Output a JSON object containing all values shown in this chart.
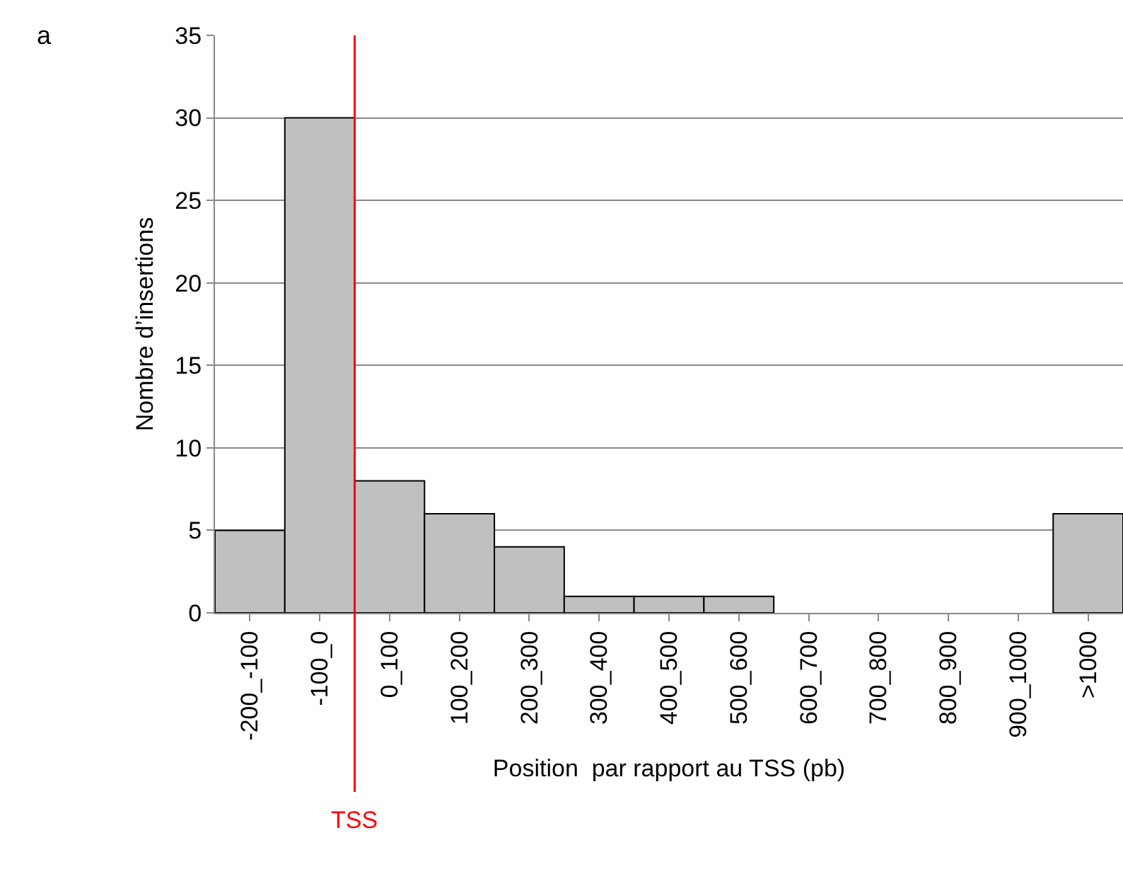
{
  "chart_data": {
    "type": "bar",
    "xlabel": "Position  par rapport au TSS (pb)",
    "ylabel": "Nombre d’insertions",
    "categories": [
      "-200_-100",
      "-100_0",
      "0_100",
      "100_200",
      "200_300",
      "300_400",
      "400_500",
      "500_600",
      "600_700",
      "700_800",
      "800_900",
      "900_1000",
      ">1000"
    ],
    "values": [
      5,
      30,
      8,
      6,
      4,
      1,
      1,
      1,
      0,
      0,
      0,
      0,
      6
    ],
    "color": "#c0c0c0",
    "ylim": [
      0,
      35
    ],
    "yticks": [
      0,
      5,
      10,
      15,
      20,
      25,
      30,
      35
    ],
    "grid": "y",
    "ref_lines": [
      {
        "axis": "x",
        "value": "0_100",
        "label": "TSS",
        "color": "#ff0000"
      }
    ],
    "annotations": [
      "a"
    ]
  }
}
